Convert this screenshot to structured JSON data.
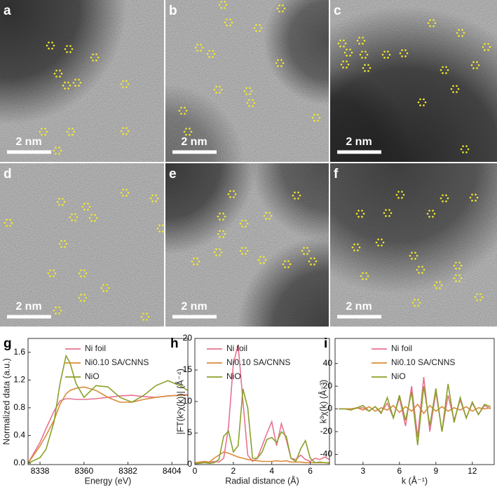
{
  "images": [
    {
      "label": "a",
      "scale_bar": "2 nm"
    },
    {
      "label": "b",
      "scale_bar": "2 nm"
    },
    {
      "label": "c",
      "scale_bar": "2 nm"
    },
    {
      "label": "d",
      "scale_bar": "2 nm"
    },
    {
      "label": "e",
      "scale_bar": "2 nm"
    },
    {
      "label": "f",
      "scale_bar": "2 nm"
    }
  ],
  "chart_data": [
    {
      "type": "line",
      "panel": "g",
      "xlabel": "Energy (eV)",
      "ylabel": "Normalized data (a.u.)",
      "x": [
        8332,
        8338,
        8341,
        8345,
        8348,
        8351,
        8353,
        8356,
        8360,
        8366,
        8372,
        8378,
        8384,
        8390,
        8396,
        8402,
        8408,
        8412
      ],
      "series": [
        {
          "name": "Ni foil",
          "color": "#e8728f",
          "values": [
            0,
            0.3,
            0.5,
            0.75,
            0.9,
            0.93,
            0.93,
            0.92,
            0.92,
            0.93,
            0.95,
            0.97,
            0.98,
            0.96,
            0.95,
            0.97,
            0.98,
            0.99
          ]
        },
        {
          "name": "Ni0.10 SA/CNNS",
          "color": "#d98b3a",
          "values": [
            0,
            0.25,
            0.4,
            0.62,
            0.85,
            1.0,
            1.05,
            1.08,
            1.1,
            1.05,
            0.95,
            0.88,
            0.88,
            0.92,
            0.95,
            0.97,
            0.98,
            0.98
          ]
        },
        {
          "name": "NiO",
          "color": "#8aa02a",
          "values": [
            0,
            0.08,
            0.2,
            0.6,
            1.15,
            1.55,
            1.45,
            1.15,
            0.95,
            1.12,
            1.1,
            0.95,
            0.88,
            0.98,
            1.12,
            1.19,
            1.12,
            1.05
          ]
        }
      ],
      "xlim": [
        8332,
        8412
      ],
      "ylim": [
        -0.02,
        1.8
      ],
      "xticks": [
        8338,
        8360,
        8382,
        8404
      ],
      "yticks": [
        {
          "value": 0,
          "label": "0.0"
        },
        0.4,
        0.8,
        1.2,
        1.6
      ],
      "legend": "upper right"
    },
    {
      "type": "line",
      "panel": "h",
      "xlabel": "Radial distance (Å)",
      "ylabel": "|FT(k²χ(k))| (Å⁻⁴)",
      "x": [
        0,
        0.25,
        0.5,
        0.75,
        1,
        1.25,
        1.5,
        1.75,
        2,
        2.25,
        2.5,
        2.75,
        3,
        3.25,
        3.5,
        3.75,
        4,
        4.25,
        4.5,
        4.75,
        5,
        5.25,
        5.5,
        5.75,
        6,
        6.25,
        6.5,
        6.75,
        7
      ],
      "series": [
        {
          "name": "Ni foil",
          "color": "#e8728f",
          "values": [
            0.2,
            0.3,
            0.5,
            0.3,
            0.5,
            0.4,
            1.0,
            6,
            16,
            19,
            10,
            1.5,
            0.5,
            1,
            3,
            5,
            6.8,
            3,
            6.5,
            4,
            1,
            0.8,
            1.5,
            0.8,
            0.5,
            1,
            0.8,
            1.2,
            0.8
          ]
        },
        {
          "name": "Ni0.10 SA/CNNS",
          "color": "#d98b3a",
          "values": [
            0.3,
            0.4,
            0.5,
            0.4,
            1,
            1.5,
            2,
            1.8,
            1.5,
            1.2,
            1,
            0.8,
            0.7,
            0.6,
            0.5,
            0.5,
            0.5,
            0.6,
            0.5,
            0.6,
            0.4,
            0.4,
            0.4,
            0.3,
            0.3,
            0.3,
            0.3,
            0.3,
            0.3
          ]
        },
        {
          "name": "NiO",
          "color": "#8aa02a",
          "values": [
            0.1,
            0.2,
            0.3,
            0.2,
            0.3,
            0.8,
            4.5,
            5.3,
            2,
            3,
            12,
            9,
            1,
            1,
            2,
            4,
            4.3,
            3.5,
            5.2,
            4.5,
            1,
            0.5,
            2.5,
            3.8,
            1,
            0.3,
            0.4,
            0.3,
            0.2
          ]
        }
      ],
      "xlim": [
        0,
        7
      ],
      "ylim": [
        0,
        20
      ],
      "xticks": [
        0,
        2,
        4,
        6
      ],
      "yticks": [
        0,
        5,
        10,
        15,
        20
      ],
      "legend": "upper right"
    },
    {
      "type": "line",
      "panel": "i",
      "xlabel": "k (Å⁻¹)",
      "ylabel": "k³χ(k) (Å⁻³)",
      "x": [
        1,
        1.5,
        2,
        2.5,
        3,
        3.5,
        4,
        4.5,
        5,
        5.5,
        6,
        6.5,
        7,
        7.5,
        8,
        8.5,
        9,
        9.5,
        10,
        10.5,
        11,
        11.5,
        12,
        12.5,
        13,
        13.5
      ],
      "series": [
        {
          "name": "Ni foil",
          "color": "#e8728f",
          "values": [
            0,
            0,
            0,
            0.5,
            1,
            -2,
            2,
            -3,
            5,
            -8,
            10,
            -15,
            20,
            -25,
            28,
            -20,
            15,
            -20,
            12,
            -10,
            8,
            -8,
            5,
            -5,
            3,
            0
          ]
        },
        {
          "name": "Ni0.10 SA/CNNS",
          "color": "#d98b3a",
          "values": [
            0,
            0,
            0,
            1,
            -1,
            2,
            -2,
            1,
            -1,
            3,
            -3,
            2,
            -2,
            4,
            -4,
            3,
            -2,
            2,
            -2,
            1,
            -1,
            2,
            -2,
            1,
            0,
            1
          ]
        },
        {
          "name": "NiO",
          "color": "#8aa02a",
          "values": [
            0,
            0,
            -1,
            1,
            3,
            -2,
            2,
            -4,
            10,
            -8,
            12,
            -10,
            15,
            -32,
            20,
            -15,
            18,
            -20,
            22,
            -12,
            10,
            -8,
            6,
            -5,
            4,
            2
          ]
        }
      ],
      "xlim": [
        0.7,
        13.8
      ],
      "ylim": [
        -49,
        62
      ],
      "xticks": [
        3,
        6,
        9,
        12
      ],
      "yticks": [
        -40,
        -20,
        0,
        20,
        40
      ],
      "legend": "upper right"
    }
  ]
}
